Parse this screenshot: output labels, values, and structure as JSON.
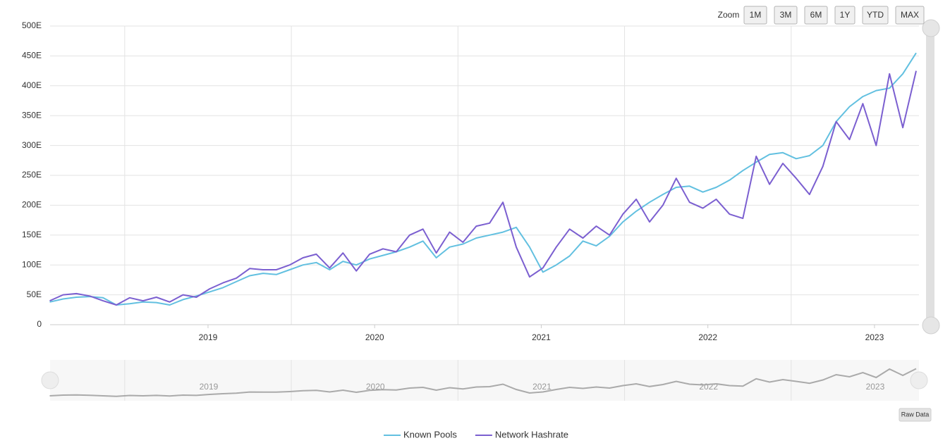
{
  "chart_data": {
    "type": "line",
    "zoom_label": "Zoom",
    "zoom_buttons": [
      "1M",
      "3M",
      "6M",
      "1Y",
      "YTD",
      "MAX"
    ],
    "raw_data_label": "Raw Data",
    "x": [
      2018.05,
      2018.13,
      2018.21,
      2018.29,
      2018.37,
      2018.45,
      2018.53,
      2018.61,
      2018.69,
      2018.77,
      2018.85,
      2018.93,
      2019.01,
      2019.09,
      2019.17,
      2019.25,
      2019.33,
      2019.41,
      2019.49,
      2019.57,
      2019.65,
      2019.73,
      2019.81,
      2019.89,
      2019.97,
      2020.05,
      2020.13,
      2020.21,
      2020.29,
      2020.37,
      2020.45,
      2020.53,
      2020.61,
      2020.69,
      2020.77,
      2020.85,
      2020.93,
      2021.01,
      2021.09,
      2021.17,
      2021.25,
      2021.33,
      2021.41,
      2021.49,
      2021.57,
      2021.65,
      2021.73,
      2021.81,
      2021.89,
      2021.97,
      2022.05,
      2022.13,
      2022.21,
      2022.29,
      2022.37,
      2022.45,
      2022.53,
      2022.61,
      2022.69,
      2022.77,
      2022.85,
      2022.93,
      2023.01,
      2023.09,
      2023.17,
      2023.25
    ],
    "series": [
      {
        "name": "Known Pools",
        "color": "#62c0e0",
        "values": [
          38,
          43,
          46,
          47,
          45,
          33,
          35,
          38,
          37,
          33,
          42,
          48,
          55,
          62,
          72,
          82,
          86,
          84,
          92,
          100,
          104,
          92,
          106,
          100,
          110,
          116,
          122,
          130,
          140,
          112,
          130,
          135,
          145,
          150,
          155,
          163,
          130,
          88,
          100,
          115,
          140,
          132,
          148,
          172,
          190,
          205,
          218,
          230,
          232,
          222,
          230,
          242,
          258,
          272,
          285,
          288,
          278,
          283,
          300,
          340,
          365,
          382,
          392,
          396,
          420,
          455
        ]
      },
      {
        "name": "Network Hashrate",
        "color": "#7b5fd0",
        "values": [
          40,
          50,
          52,
          48,
          40,
          33,
          45,
          40,
          46,
          38,
          50,
          46,
          60,
          70,
          78,
          94,
          92,
          92,
          100,
          112,
          118,
          95,
          120,
          90,
          118,
          127,
          122,
          150,
          160,
          120,
          155,
          138,
          165,
          170,
          205,
          130,
          80,
          95,
          130,
          160,
          145,
          165,
          150,
          185,
          210,
          172,
          200,
          245,
          205,
          195,
          210,
          185,
          178,
          282,
          235,
          270,
          245,
          218,
          265,
          340,
          310,
          370,
          300,
          420,
          330,
          425
        ]
      }
    ],
    "xlim": [
      2018.052,
      2023.267
    ],
    "xticks": [
      2019,
      2020,
      2021,
      2022,
      2023
    ],
    "x_gridlines": [
      2018.5,
      2019.5,
      2020.5,
      2021.5,
      2022.5
    ],
    "ylim": [
      0,
      500
    ],
    "yticks": [
      0,
      {
        "value": 50,
        "label": "50E"
      },
      {
        "value": 100,
        "label": "100E"
      },
      {
        "value": 150,
        "label": "150E"
      },
      {
        "value": 200,
        "label": "200E"
      },
      {
        "value": 250,
        "label": "250E"
      },
      {
        "value": 300,
        "label": "300E"
      },
      {
        "value": 350,
        "label": "350E"
      },
      {
        "value": 400,
        "label": "400E"
      },
      {
        "value": 450,
        "label": "450E"
      },
      {
        "value": 500,
        "label": "500E"
      }
    ],
    "grid": true,
    "legend": "bottom"
  }
}
